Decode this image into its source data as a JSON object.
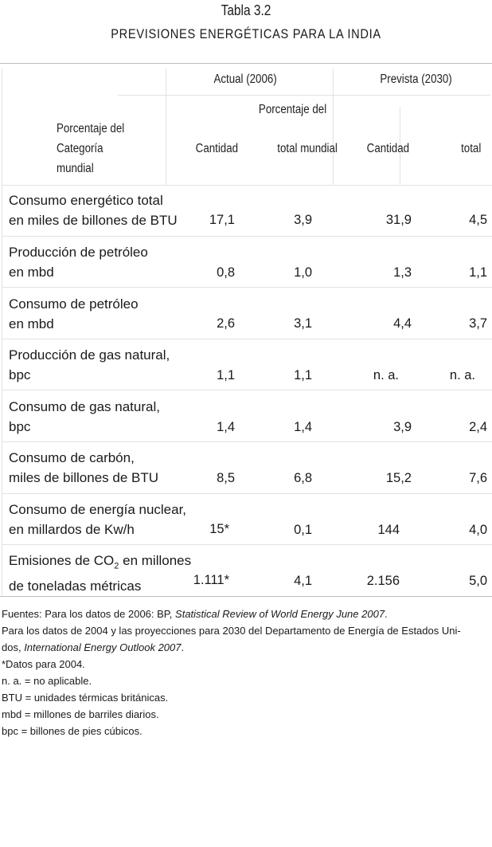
{
  "title": "Tabla 3.2",
  "subtitle": "PREVISIONES ENERGÉTICAS PARA LA INDIA",
  "header": {
    "group_actual": "Actual (2006)",
    "group_prevista": "Prevista (2030)",
    "porcentaje_del": "Porcentaje del",
    "category_line1": "Porcentaje del",
    "category_line2": "Categoría",
    "category_line3": "mundial",
    "col_cantidad_actual": "Cantidad",
    "col_total_mundial": "total mundial",
    "col_cantidad_prevista": "Cantidad",
    "col_total": "total"
  },
  "rows": [
    {
      "line1": "Consumo energético total",
      "line2": "en miles de billones de BTU",
      "actual_cantidad": "17,1",
      "actual_pct": "3,9",
      "prev_cantidad": "31,9",
      "prev_pct": "4,5"
    },
    {
      "line1": "Producción de petróleo",
      "line2": "en mbd",
      "actual_cantidad": "0,8",
      "actual_pct": "1,0",
      "prev_cantidad": "1,3",
      "prev_pct": "1,1"
    },
    {
      "line1": "Consumo de petróleo",
      "line2": "en mbd",
      "actual_cantidad": "2,6",
      "actual_pct": "3,1",
      "prev_cantidad": "4,4",
      "prev_pct": "3,7"
    },
    {
      "line1": "Producción de gas natural,",
      "line2": "bpc",
      "actual_cantidad": "1,1",
      "actual_pct": "1,1",
      "prev_cantidad": "n. a.",
      "prev_pct": "n. a."
    },
    {
      "line1": "Consumo de gas natural,",
      "line2": "bpc",
      "actual_cantidad": "1,4",
      "actual_pct": "1,4",
      "prev_cantidad": "3,9",
      "prev_pct": "2,4"
    },
    {
      "line1": "Consumo de carbón,",
      "line2": "miles de billones de BTU",
      "actual_cantidad": "8,5",
      "actual_pct": "6,8",
      "prev_cantidad": "15,2",
      "prev_pct": "7,6"
    },
    {
      "line1": "Consumo de energía nuclear,",
      "line2": "en millardos de Kw/h",
      "actual_cantidad": "15*",
      "actual_pct": "0,1",
      "prev_cantidad": "144",
      "prev_pct": "4,0"
    },
    {
      "line1_a": "Emisiones de CO",
      "line1_sub": "2",
      "line1_b": " en millones",
      "line2": "de toneladas métricas",
      "actual_cantidad": "1.111*",
      "actual_pct": "4,1",
      "prev_cantidad": "2.156",
      "prev_pct": "5,0"
    }
  ],
  "notes": {
    "fuentes_a": "Fuentes: Para los datos de 2006: BP, ",
    "fuentes_b": "Statistical Review of World Energy June 2007",
    "fuentes_c": ".",
    "para_a": "Para los datos de 2004 y las proyecciones para 2030 del Departamento de Energía de Estados Uni-",
    "para_b": "dos, ",
    "para_c": "International Energy Outlook 2007",
    "para_d": ".",
    "datos": "*Datos para 2004.",
    "na": "n. a. = no aplicable.",
    "btu": "BTU = unidades térmicas británicas.",
    "mbd": "mbd = millones de barriles diarios.",
    "bpc": "bpc = billones de pies cúbicos."
  }
}
